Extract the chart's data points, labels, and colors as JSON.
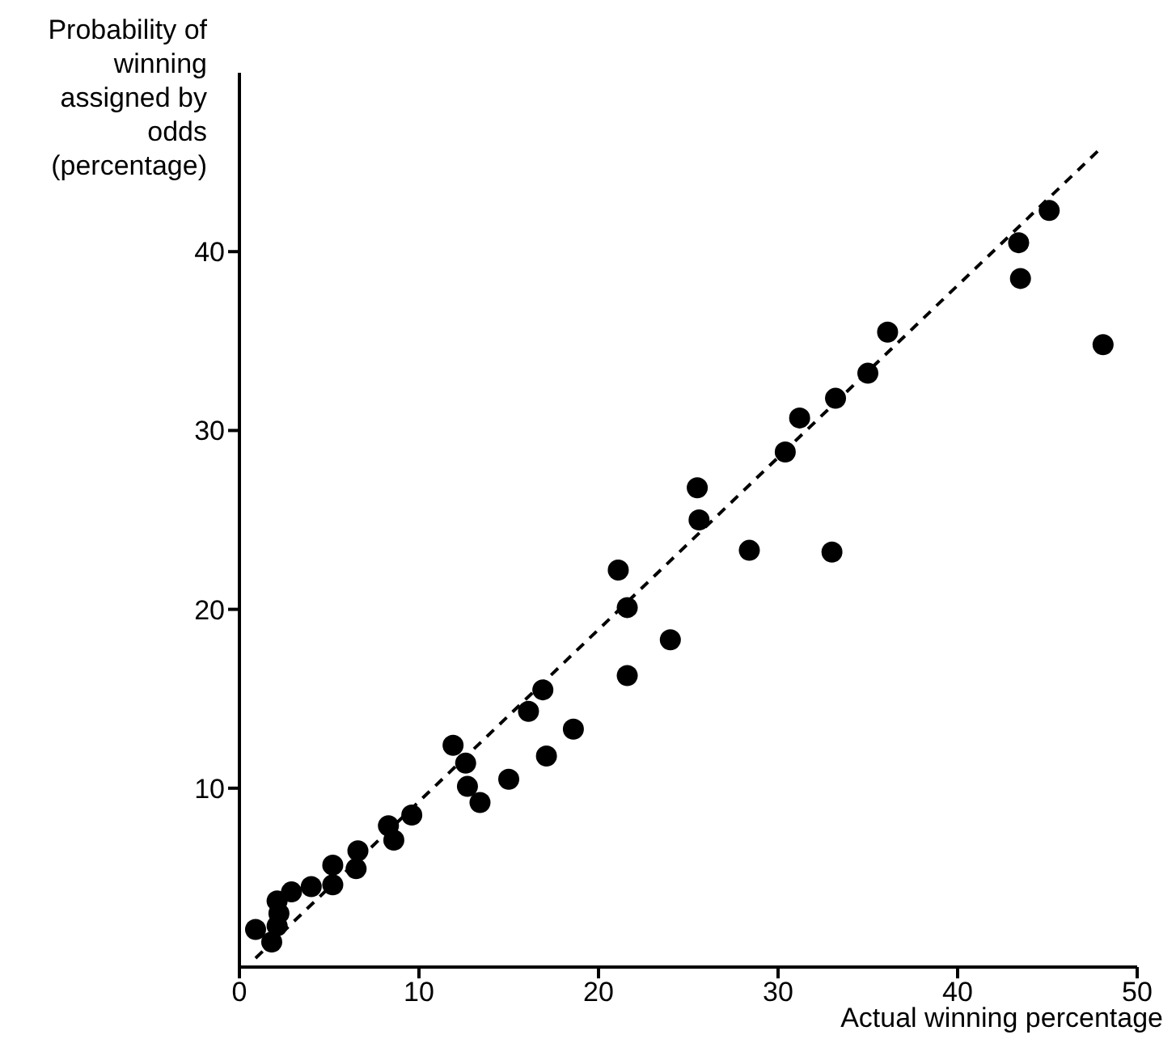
{
  "chart_data": {
    "type": "scatter",
    "xlabel": "Actual winning percentage",
    "ylabel": "Probability of winning assigned by odds (percentage)",
    "xlim": [
      0,
      50
    ],
    "xticks": [
      0,
      10,
      20,
      30,
      40,
      50
    ],
    "ylim": [
      0,
      50
    ],
    "yticks": [
      10,
      20,
      30,
      40
    ],
    "marker": "circle",
    "series": [
      {
        "type": "scatter",
        "color": "#000000",
        "x": [
          0.9,
          1.8,
          2.1,
          2.2,
          2.1,
          2.9,
          4.0,
          5.2,
          5.2,
          6.6,
          6.5,
          8.3,
          8.6,
          9.6,
          11.9,
          12.6,
          12.7,
          13.4,
          15.0,
          16.1,
          16.9,
          17.1,
          18.6,
          21.1,
          21.6,
          21.6,
          24.0,
          25.5,
          25.6,
          28.4,
          33.0,
          30.4,
          31.2,
          33.2,
          35.0,
          36.1,
          43.4,
          43.5,
          45.1,
          48.1
        ],
        "values": [
          2.1,
          1.4,
          2.3,
          3.0,
          3.7,
          4.2,
          4.5,
          5.7,
          4.6,
          6.5,
          5.5,
          7.9,
          7.1,
          8.5,
          12.4,
          11.4,
          10.1,
          9.2,
          10.5,
          14.3,
          15.5,
          11.8,
          13.3,
          22.2,
          20.1,
          16.3,
          18.3,
          26.8,
          25.0,
          23.3,
          23.2,
          28.8,
          30.7,
          31.8,
          33.2,
          35.5,
          40.5,
          38.5,
          42.3,
          34.8
        ]
      },
      {
        "type": "line",
        "color": "#000000",
        "line_style": "dashed",
        "marker": "none",
        "x": [
          0.9,
          48.1
        ],
        "values": [
          0.5,
          45.9
        ]
      }
    ]
  }
}
